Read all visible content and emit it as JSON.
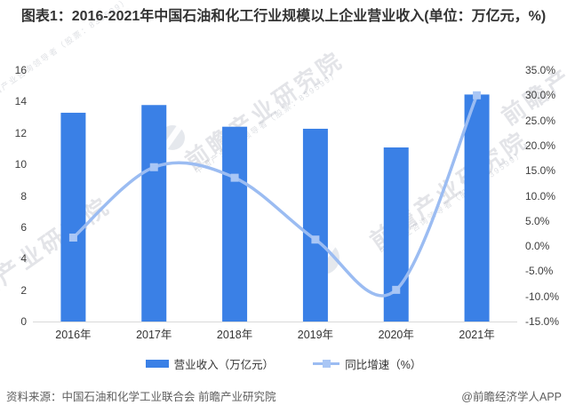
{
  "title": "图表1：2016-2021年中国石油和化工行业规模以上企业营业收入(单位：万亿元，%)",
  "chart_data": {
    "type": "bar",
    "subtype": "bar-line-combo",
    "categories": [
      "2016年",
      "2017年",
      "2018年",
      "2019年",
      "2020年",
      "2021年"
    ],
    "series": [
      {
        "name": "营业收入（万亿元）",
        "type": "bar",
        "axis": "left",
        "values": [
          13.29,
          13.78,
          12.4,
          12.27,
          11.08,
          14.45
        ]
      },
      {
        "name": "同比增速（%）",
        "type": "line",
        "axis": "right",
        "values": [
          1.7,
          15.7,
          13.6,
          1.3,
          -8.7,
          30.0
        ]
      }
    ],
    "title": "图表1：2016-2021年中国石油和化工行业规模以上企业营业收入(单位：万亿元，%)",
    "xlabel": "",
    "ylabel": "",
    "left_axis": {
      "min": 0,
      "max": 16,
      "tick_labels": [
        "16",
        "14",
        "12",
        "10",
        "8",
        "6",
        "4",
        "2",
        "0"
      ]
    },
    "right_axis": {
      "min": -15,
      "max": 35,
      "tick_labels": [
        "35.0%",
        "30.0%",
        "25.0%",
        "20.0%",
        "15.0%",
        "10.0%",
        "5.0%",
        "0.0%",
        "-5.0%",
        "-10.0%",
        "-15.0%"
      ]
    },
    "grid": false,
    "legend_position": "bottom",
    "line_is_smoothed": true
  },
  "legend": {
    "bar_label": "营业收入（万亿元）",
    "line_label": "同比增速（%）"
  },
  "footer": {
    "source": "资料来源：中国石油和化学工业联合会 前瞻产业研究院",
    "brand": "@前瞻经济学人APP"
  },
  "watermark": {
    "text": "前瞻产业研究院",
    "subtext": "中国产业咨询领导者（股票：839599）",
    "logo_icon": "qianzhan-eye-logo"
  },
  "colors": {
    "bar": "#3A80E6",
    "line": "#9BBCF2",
    "marker": "#A9C6F5",
    "axis_line": "#D9D9D9",
    "title_text": "#333333",
    "footer_text": "#5E5E5E"
  }
}
